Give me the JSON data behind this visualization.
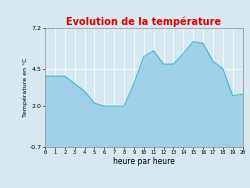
{
  "title": "Evolution de la température",
  "xlabel": "heure par heure",
  "ylabel": "Température en °C",
  "background_color": "#d8e8f0",
  "plot_bg_color": "#d8e8f0",
  "line_color": "#40b8d8",
  "fill_color": "#a0d0e8",
  "title_color": "#dd0000",
  "ylim": [
    -0.7,
    7.2
  ],
  "yticks": [
    -0.7,
    2.0,
    4.5,
    7.2
  ],
  "xlim": [
    0,
    20
  ],
  "xticks": [
    0,
    1,
    2,
    3,
    4,
    5,
    6,
    7,
    8,
    9,
    10,
    11,
    12,
    13,
    14,
    15,
    16,
    17,
    18,
    19,
    20
  ],
  "hours": [
    0,
    1,
    2,
    3,
    4,
    5,
    6,
    7,
    8,
    9,
    10,
    11,
    12,
    13,
    14,
    15,
    16,
    17,
    18,
    19,
    20
  ],
  "temps": [
    4.0,
    4.0,
    4.0,
    3.5,
    3.0,
    2.2,
    2.0,
    2.0,
    2.0,
    3.5,
    5.3,
    5.7,
    4.8,
    4.8,
    5.5,
    6.3,
    6.2,
    5.0,
    4.5,
    2.7,
    2.8
  ]
}
